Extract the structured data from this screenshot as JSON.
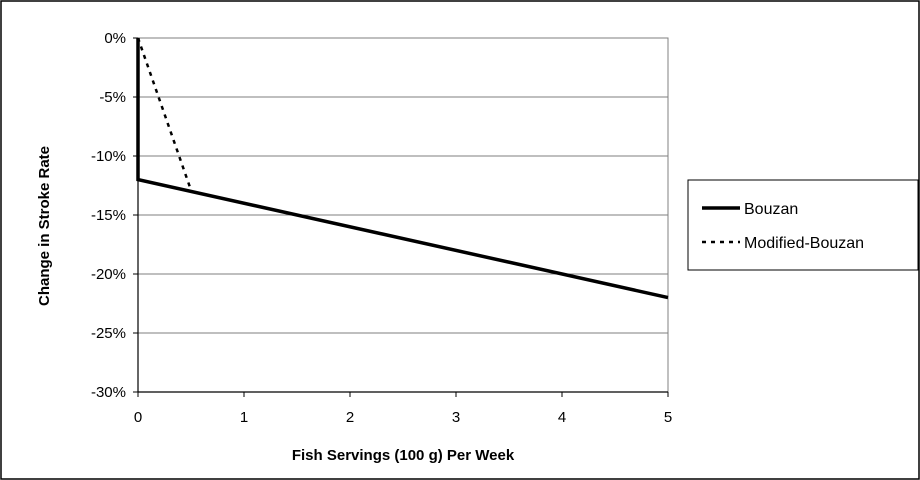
{
  "chart_data": {
    "type": "line",
    "title": "",
    "xlabel": "Fish Servings (100 g) Per Week",
    "ylabel": "Change in Stroke Rate",
    "xlim": [
      0,
      5
    ],
    "ylim": [
      -30,
      0
    ],
    "x_ticks": [
      {
        "value": 0,
        "label": "0"
      },
      {
        "value": 1,
        "label": "1"
      },
      {
        "value": 2,
        "label": "2"
      },
      {
        "value": 3,
        "label": "3"
      },
      {
        "value": 4,
        "label": "4"
      },
      {
        "value": 5,
        "label": "5"
      }
    ],
    "y_ticks": [
      {
        "value": 0,
        "label": "0%"
      },
      {
        "value": -5,
        "label": "-5%"
      },
      {
        "value": -10,
        "label": "-10%"
      },
      {
        "value": -15,
        "label": "-15%"
      },
      {
        "value": -20,
        "label": "-20%"
      },
      {
        "value": -25,
        "label": "-25%"
      },
      {
        "value": -30,
        "label": "-30%"
      }
    ],
    "grid": "horizontal",
    "legend_position": "right",
    "series": [
      {
        "name": "Bouzan",
        "style": "solid",
        "color": "#000000",
        "points": [
          {
            "x": 0,
            "y": 0
          },
          {
            "x": 0,
            "y": -12
          },
          {
            "x": 5,
            "y": -22
          }
        ]
      },
      {
        "name": "Modified-Bouzan",
        "style": "dotted",
        "color": "#000000",
        "points": [
          {
            "x": 0,
            "y": 0
          },
          {
            "x": 0.5,
            "y": -12.9
          }
        ]
      }
    ]
  }
}
